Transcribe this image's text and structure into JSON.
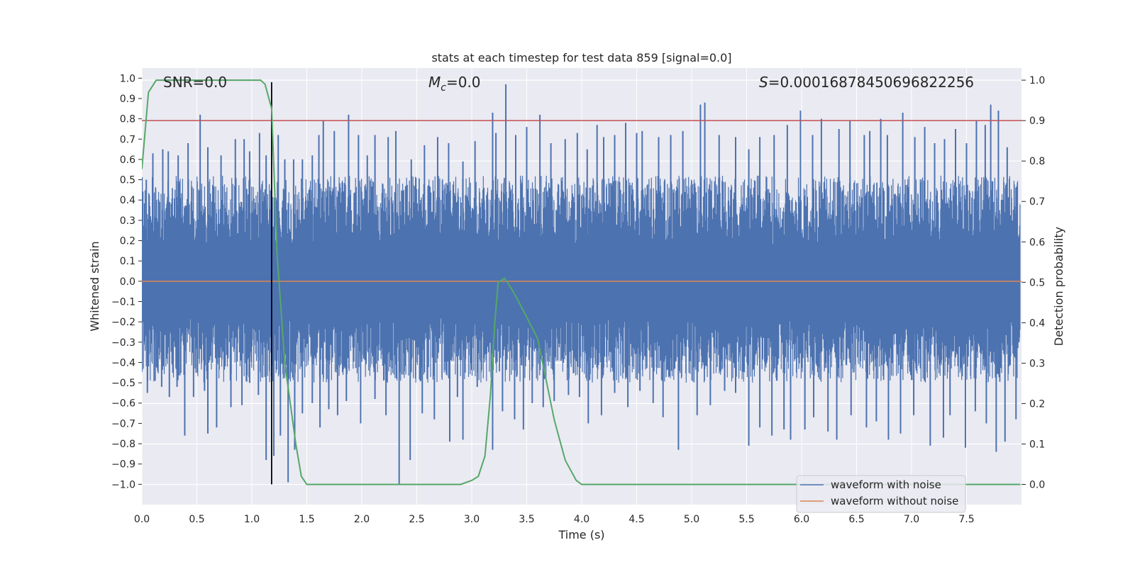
{
  "chart_data": {
    "type": "line",
    "title": "stats at each timestep for test data 859 [signal=0.0]",
    "xlabel": "Time (s)",
    "ylabel": "Whitened strain",
    "y2label": "Detection probability",
    "xlim": [
      0.0,
      8.0
    ],
    "ylim": [
      -1.1,
      1.05
    ],
    "y2lim": [
      -0.05,
      1.03
    ],
    "x_ticks": [
      "0.0",
      "0.5",
      "1.0",
      "1.5",
      "2.0",
      "2.5",
      "3.0",
      "3.5",
      "4.0",
      "4.5",
      "5.0",
      "5.5",
      "6.0",
      "6.5",
      "7.0",
      "7.5"
    ],
    "y_ticks": [
      "1.0",
      "0.9",
      "0.8",
      "0.7",
      "0.6",
      "0.5",
      "0.4",
      "0.3",
      "0.2",
      "0.1",
      "0.0",
      "-0.1",
      "-0.2",
      "-0.3",
      "-0.4",
      "-0.5",
      "-0.6",
      "-0.7",
      "-0.8",
      "-0.9",
      "-1.0"
    ],
    "y2_ticks": [
      "1.0",
      "0.9",
      "0.8",
      "0.7",
      "0.6",
      "0.5",
      "0.4",
      "0.3",
      "0.2",
      "0.1",
      "0.0"
    ],
    "annotations": {
      "snr": "SNR=0.0",
      "mc_symbol": "M",
      "mc_sub": "c",
      "mc_value": "=0.0",
      "s_symbol": "S",
      "s_value": "=0.00016878450696822256"
    },
    "threshold": 0.9,
    "marker_time": 1.18,
    "series": [
      {
        "name": "waveform with noise",
        "color": "#4c72b0",
        "axis": "left",
        "spikes_up": [
          [
            0.04,
            0.5
          ],
          [
            0.1,
            0.63
          ],
          [
            0.19,
            0.65
          ],
          [
            0.24,
            0.64
          ],
          [
            0.33,
            0.62
          ],
          [
            0.42,
            0.68
          ],
          [
            0.53,
            0.82
          ],
          [
            0.6,
            0.66
          ],
          [
            0.72,
            0.62
          ],
          [
            0.85,
            0.7
          ],
          [
            0.93,
            0.7
          ],
          [
            0.98,
            0.64
          ],
          [
            1.07,
            0.73
          ],
          [
            1.13,
            0.62
          ],
          [
            1.24,
            0.72
          ],
          [
            1.3,
            0.6
          ],
          [
            1.38,
            0.6
          ],
          [
            1.46,
            0.6
          ],
          [
            1.55,
            0.62
          ],
          [
            1.61,
            0.72
          ],
          [
            1.65,
            0.79
          ],
          [
            1.75,
            0.74
          ],
          [
            1.88,
            0.82
          ],
          [
            1.97,
            0.72
          ],
          [
            2.05,
            0.62
          ],
          [
            2.12,
            0.72
          ],
          [
            2.24,
            0.71
          ],
          [
            2.31,
            0.74
          ],
          [
            2.45,
            0.6
          ],
          [
            2.57,
            0.67
          ],
          [
            2.69,
            0.71
          ],
          [
            2.79,
            0.68
          ],
          [
            2.92,
            0.59
          ],
          [
            3.03,
            0.69
          ],
          [
            3.19,
            0.83
          ],
          [
            3.22,
            0.73
          ],
          [
            3.31,
            0.97
          ],
          [
            3.4,
            0.72
          ],
          [
            3.5,
            0.76
          ],
          [
            3.62,
            0.82
          ],
          [
            3.72,
            0.68
          ],
          [
            3.85,
            0.7
          ],
          [
            3.96,
            0.73
          ],
          [
            4.05,
            0.65
          ],
          [
            4.14,
            0.77
          ],
          [
            4.2,
            0.71
          ],
          [
            4.3,
            0.72
          ],
          [
            4.4,
            0.78
          ],
          [
            4.5,
            0.73
          ],
          [
            4.55,
            0.74
          ],
          [
            4.7,
            0.71
          ],
          [
            4.81,
            0.72
          ],
          [
            4.92,
            0.74
          ],
          [
            5.08,
            0.87
          ],
          [
            5.12,
            0.88
          ],
          [
            5.25,
            0.72
          ],
          [
            5.4,
            0.71
          ],
          [
            5.52,
            0.65
          ],
          [
            5.62,
            0.71
          ],
          [
            5.75,
            0.72
          ],
          [
            5.87,
            0.77
          ],
          [
            5.99,
            0.84
          ],
          [
            6.1,
            0.72
          ],
          [
            6.18,
            0.8
          ],
          [
            6.34,
            0.75
          ],
          [
            6.44,
            0.79
          ],
          [
            6.57,
            0.72
          ],
          [
            6.62,
            0.74
          ],
          [
            6.72,
            0.8
          ],
          [
            6.78,
            0.72
          ],
          [
            6.92,
            0.83
          ],
          [
            7.03,
            0.71
          ],
          [
            7.12,
            0.76
          ],
          [
            7.21,
            0.68
          ],
          [
            7.3,
            0.7
          ],
          [
            7.4,
            0.75
          ],
          [
            7.5,
            0.68
          ],
          [
            7.59,
            0.79
          ],
          [
            7.67,
            0.77
          ],
          [
            7.72,
            0.87
          ],
          [
            7.79,
            0.84
          ],
          [
            7.87,
            0.66
          ],
          [
            7.95,
            0.46
          ]
        ],
        "spikes_down": [
          [
            0.05,
            -0.55
          ],
          [
            0.12,
            -0.49
          ],
          [
            0.18,
            -0.52
          ],
          [
            0.25,
            -0.57
          ],
          [
            0.32,
            -0.52
          ],
          [
            0.39,
            -0.76
          ],
          [
            0.47,
            -0.57
          ],
          [
            0.57,
            -0.54
          ],
          [
            0.6,
            -0.75
          ],
          [
            0.68,
            -0.72
          ],
          [
            0.81,
            -0.62
          ],
          [
            0.91,
            -0.61
          ],
          [
            0.98,
            -0.5
          ],
          [
            1.06,
            -0.56
          ],
          [
            1.13,
            -0.88
          ],
          [
            1.2,
            -0.86
          ],
          [
            1.26,
            -0.76
          ],
          [
            1.33,
            -0.99
          ],
          [
            1.39,
            -0.83
          ],
          [
            1.46,
            -0.65
          ],
          [
            1.55,
            -0.6
          ],
          [
            1.62,
            -0.72
          ],
          [
            1.7,
            -0.63
          ],
          [
            1.78,
            -0.66
          ],
          [
            1.86,
            -0.59
          ],
          [
            1.99,
            -0.7
          ],
          [
            2.12,
            -0.58
          ],
          [
            2.22,
            -0.66
          ],
          [
            2.34,
            -1.0
          ],
          [
            2.44,
            -0.88
          ],
          [
            2.55,
            -0.65
          ],
          [
            2.66,
            -0.68
          ],
          [
            2.8,
            -0.79
          ],
          [
            2.87,
            -0.57
          ],
          [
            2.92,
            -0.78
          ],
          [
            3.05,
            -0.52
          ],
          [
            3.19,
            -0.83
          ],
          [
            3.28,
            -0.64
          ],
          [
            3.39,
            -0.68
          ],
          [
            3.47,
            -0.73
          ],
          [
            3.55,
            -0.6
          ],
          [
            3.65,
            -0.62
          ],
          [
            3.75,
            -0.59
          ],
          [
            3.88,
            -0.56
          ],
          [
            3.98,
            -0.57
          ],
          [
            4.06,
            -0.7
          ],
          [
            4.18,
            -0.66
          ],
          [
            4.3,
            -0.55
          ],
          [
            4.42,
            -0.62
          ],
          [
            4.53,
            -0.54
          ],
          [
            4.65,
            -0.6
          ],
          [
            4.74,
            -0.67
          ],
          [
            4.88,
            -0.83
          ],
          [
            5.05,
            -0.66
          ],
          [
            5.17,
            -0.61
          ],
          [
            5.3,
            -0.54
          ],
          [
            5.4,
            -0.55
          ],
          [
            5.52,
            -0.81
          ],
          [
            5.62,
            -0.72
          ],
          [
            5.73,
            -0.76
          ],
          [
            5.84,
            -0.73
          ],
          [
            5.9,
            -0.78
          ],
          [
            6.03,
            -0.73
          ],
          [
            6.11,
            -0.67
          ],
          [
            6.24,
            -0.74
          ],
          [
            6.32,
            -0.78
          ],
          [
            6.45,
            -0.66
          ],
          [
            6.59,
            -0.72
          ],
          [
            6.68,
            -0.69
          ],
          [
            6.79,
            -0.78
          ],
          [
            6.9,
            -0.75
          ],
          [
            7.02,
            -0.66
          ],
          [
            7.17,
            -0.81
          ],
          [
            7.29,
            -0.77
          ],
          [
            7.35,
            -0.66
          ],
          [
            7.49,
            -0.82
          ],
          [
            7.58,
            -0.64
          ],
          [
            7.68,
            -0.7
          ],
          [
            7.77,
            -0.84
          ],
          [
            7.85,
            -0.79
          ],
          [
            7.95,
            -0.68
          ]
        ]
      },
      {
        "name": "waveform without noise",
        "color": "#dd8452",
        "axis": "left",
        "x": [
          0.0,
          8.0
        ],
        "y": [
          0.0,
          0.0
        ]
      },
      {
        "name": "detection probability",
        "color": "#55a868",
        "axis": "right",
        "x": [
          0.0,
          0.06,
          0.13,
          0.2,
          0.3,
          0.5,
          0.8,
          1.0,
          1.08,
          1.12,
          1.18,
          1.23,
          1.3,
          1.4,
          1.45,
          1.5,
          1.8,
          2.2,
          2.6,
          2.9,
          3.0,
          3.06,
          3.12,
          3.17,
          3.21,
          3.24,
          3.3,
          3.37,
          3.45,
          3.6,
          3.75,
          3.85,
          3.95,
          4.0,
          4.07,
          4.2,
          4.6,
          5.0,
          6.0,
          7.0,
          7.99
        ],
        "y": [
          0.78,
          0.97,
          1.0,
          1.0,
          1.0,
          1.0,
          1.0,
          1.0,
          1.0,
          0.99,
          0.93,
          0.57,
          0.3,
          0.1,
          0.02,
          0.0,
          0.0,
          0.0,
          0.0,
          0.0,
          0.01,
          0.02,
          0.07,
          0.22,
          0.4,
          0.5,
          0.51,
          0.48,
          0.44,
          0.36,
          0.16,
          0.06,
          0.01,
          0.0,
          0.0,
          0.0,
          0.0,
          0.0,
          0.0,
          0.0,
          0.0
        ]
      }
    ],
    "legend": {
      "location": "lower-right",
      "entries": [
        "waveform with noise",
        "waveform without noise"
      ]
    },
    "colors": {
      "plot_bg": "#eaeaf2",
      "grid": "#ffffff",
      "threshold_line": "#c44e52",
      "marker_line": "#000000"
    }
  }
}
